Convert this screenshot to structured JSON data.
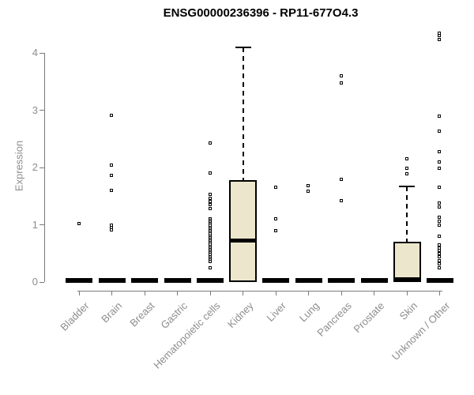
{
  "title": "ENSG00000236396 - RP11-677O4.3",
  "colors": {
    "box_fill": "#ECE7CC",
    "axis_line": "#7b7b7b",
    "axis_text": "#8d8d8d",
    "data_ink": "#000000"
  },
  "chart_data": {
    "type": "boxplot",
    "title": "ENSG00000236396 - RP11-677O4.3",
    "xlabel": "",
    "ylabel": "Expression",
    "ylim": [
      0,
      4.4
    ],
    "yticks": [
      0,
      1,
      2,
      3,
      4
    ],
    "grid": false,
    "legend": "none",
    "box_fill": "#ECE7CC",
    "categories": [
      "Bladder",
      "Brain",
      "Breast",
      "Gastric",
      "Hematopoietic cells",
      "Kidney",
      "Liver",
      "Lung",
      "Pancreas",
      "Prostate",
      "Skin",
      "Unknown / Other"
    ],
    "series": [
      {
        "name": "Bladder",
        "q1": 0,
        "median": 0,
        "q3": 0,
        "whisker_low": 0,
        "whisker_high": 0,
        "outliers": [
          1.01
        ]
      },
      {
        "name": "Brain",
        "q1": 0,
        "median": 0,
        "q3": 0,
        "whisker_low": 0,
        "whisker_high": 0,
        "outliers": [
          2.9,
          2.03,
          1.85,
          1.6,
          0.98,
          0.94,
          0.91
        ]
      },
      {
        "name": "Breast",
        "q1": 0,
        "median": 0,
        "q3": 0,
        "whisker_low": 0,
        "whisker_high": 0,
        "outliers": []
      },
      {
        "name": "Gastric",
        "q1": 0,
        "median": 0,
        "q3": 0,
        "whisker_low": 0,
        "whisker_high": 0,
        "outliers": []
      },
      {
        "name": "Hematopoietic cells",
        "q1": 0,
        "median": 0,
        "q3": 0,
        "whisker_low": 0,
        "whisker_high": 0,
        "outliers": [
          2.42,
          1.9,
          1.52,
          1.46,
          1.4,
          1.34,
          1.28,
          1.1,
          1.07,
          1.04,
          1.01,
          0.98,
          0.95,
          0.92,
          0.89,
          0.86,
          0.83,
          0.8,
          0.77,
          0.74,
          0.71,
          0.68,
          0.65,
          0.62,
          0.59,
          0.56,
          0.53,
          0.5,
          0.47,
          0.44,
          0.41,
          0.38,
          0.35,
          0.24
        ]
      },
      {
        "name": "Kidney",
        "q1": 0,
        "median": 0.72,
        "q3": 1.78,
        "whisker_low": 0,
        "whisker_high": 4.1,
        "outliers": []
      },
      {
        "name": "Liver",
        "q1": 0,
        "median": 0,
        "q3": 0,
        "whisker_low": 0,
        "whisker_high": 0,
        "outliers": [
          1.65,
          1.09,
          0.89
        ]
      },
      {
        "name": "Lung",
        "q1": 0,
        "median": 0,
        "q3": 0,
        "whisker_low": 0,
        "whisker_high": 0,
        "outliers": [
          1.68,
          1.58
        ]
      },
      {
        "name": "Pancreas",
        "q1": 0,
        "median": 0,
        "q3": 0,
        "whisker_low": 0,
        "whisker_high": 0,
        "outliers": [
          3.6,
          3.47,
          1.78,
          1.42
        ]
      },
      {
        "name": "Prostate",
        "q1": 0,
        "median": 0,
        "q3": 0,
        "whisker_low": 0,
        "whisker_high": 0,
        "outliers": []
      },
      {
        "name": "Skin",
        "q1": 0,
        "median": 0,
        "q3": 0.7,
        "whisker_low": 0,
        "whisker_high": 1.67,
        "outliers": [
          2.15,
          1.98,
          1.88
        ]
      },
      {
        "name": "Unknown / Other",
        "q1": 0,
        "median": 0,
        "q3": 0,
        "whisker_low": 0,
        "whisker_high": 0,
        "outliers": [
          4.34,
          4.29,
          4.23,
          2.89,
          2.63,
          2.27,
          2.09,
          1.98,
          1.65,
          1.37,
          1.31,
          1.13,
          1.06,
          0.99,
          0.79,
          0.64,
          0.59,
          0.54,
          0.49,
          0.44,
          0.37,
          0.31,
          0.24
        ]
      }
    ]
  }
}
